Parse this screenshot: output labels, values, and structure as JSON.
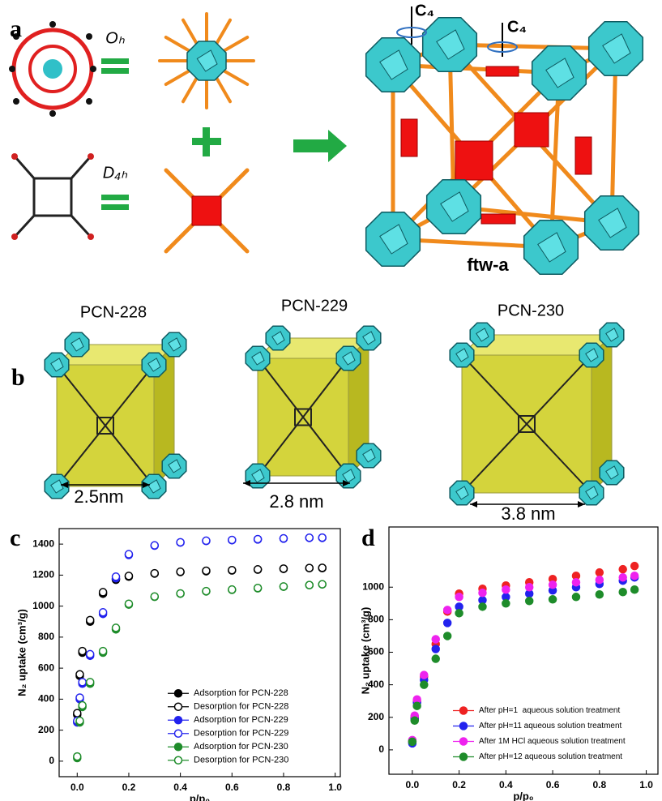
{
  "panels": {
    "a": {
      "label": "a",
      "oh": "Oₕ",
      "d4h": "D₄ₕ",
      "c4_left": "C₄",
      "c4_right": "C₄",
      "net": "ftw-a"
    },
    "b": {
      "label": "b",
      "names": [
        "PCN-228",
        "PCN-229",
        "PCN-230"
      ],
      "sizes": [
        "2.5nm",
        "2.8 nm",
        "3.8 nm"
      ]
    },
    "c": {
      "label": "c"
    },
    "d": {
      "label": "d"
    }
  },
  "chart_data": [
    {
      "type": "scatter",
      "x_label": "p/p₀",
      "y_label": "N₂ uptake (cm³/g)",
      "x": [
        0,
        0.01,
        0.02,
        0.05,
        0.1,
        0.15,
        0.2,
        0.3,
        0.4,
        0.5,
        0.6,
        0.7,
        0.8,
        0.9,
        0.95
      ],
      "xlim": [
        -0.07,
        1.02
      ],
      "ylim": [
        -100,
        1500
      ],
      "xticks": [
        {
          "value": 0,
          "label": "0.0"
        },
        {
          "value": 0.2,
          "label": "0.2"
        },
        {
          "value": 0.4,
          "label": "0.4"
        },
        {
          "value": 0.6,
          "label": "0.6"
        },
        {
          "value": 0.8,
          "label": "0.8"
        },
        {
          "value": 1,
          "label": "1.0"
        }
      ],
      "yticks": [
        0,
        200,
        400,
        600,
        800,
        1000,
        1200,
        1400
      ],
      "legend": "lower right",
      "series": [
        {
          "name": "Adsorption for PCN-228",
          "color": "#000000",
          "filled": true,
          "values": [
            300,
            550,
            700,
            900,
            1080,
            1170,
            1190,
            1210,
            1220,
            1225,
            1230,
            1235,
            1240,
            1245,
            1245
          ]
        },
        {
          "name": "Desorption for PCN-228",
          "color": "#000000",
          "filled": false,
          "values": [
            310,
            560,
            710,
            910,
            1090,
            1175,
            1195,
            1212,
            1222,
            1228,
            1232,
            1237,
            1242,
            1246,
            1247
          ]
        },
        {
          "name": "Adsorption for PCN-229",
          "color": "#2222ee",
          "filled": true,
          "values": [
            250,
            400,
            500,
            680,
            950,
            1180,
            1330,
            1390,
            1410,
            1420,
            1425,
            1430,
            1435,
            1440,
            1440
          ]
        },
        {
          "name": "Desorption for PCN-229",
          "color": "#2222ee",
          "filled": false,
          "values": [
            260,
            410,
            510,
            690,
            960,
            1190,
            1335,
            1392,
            1412,
            1422,
            1427,
            1432,
            1437,
            1441,
            1442
          ]
        },
        {
          "name": "Adsorption for PCN-230",
          "color": "#1e8c2a",
          "filled": true,
          "values": [
            20,
            250,
            350,
            500,
            700,
            850,
            1010,
            1060,
            1080,
            1095,
            1105,
            1115,
            1125,
            1135,
            1140
          ]
        },
        {
          "name": "Desorption for PCN-230",
          "color": "#1e8c2a",
          "filled": false,
          "values": [
            30,
            260,
            360,
            510,
            710,
            860,
            1015,
            1062,
            1082,
            1097,
            1107,
            1117,
            1127,
            1136,
            1141
          ]
        }
      ]
    },
    {
      "type": "scatter",
      "x_label": "p/p₀",
      "y_label": "N₂ uptake (cm³/g)",
      "x": [
        0,
        0.01,
        0.02,
        0.05,
        0.1,
        0.15,
        0.2,
        0.3,
        0.4,
        0.5,
        0.6,
        0.7,
        0.8,
        0.9,
        0.95
      ],
      "xlim": [
        -0.1,
        1.05
      ],
      "ylim": [
        -150,
        1370
      ],
      "xticks": [
        {
          "value": 0,
          "label": "0.0"
        },
        {
          "value": 0.2,
          "label": "0.2"
        },
        {
          "value": 0.4,
          "label": "0.4"
        },
        {
          "value": 0.6,
          "label": "0.6"
        },
        {
          "value": 0.8,
          "label": "0.8"
        },
        {
          "value": 1,
          "label": "1.0"
        }
      ],
      "yticks": [
        0,
        200,
        400,
        600,
        800,
        1000
      ],
      "legend": "lower right",
      "series": [
        {
          "name": "After pH=1  aqueous solution treatment",
          "color": "#ee2222",
          "filled": true,
          "values": [
            50,
            200,
            300,
            450,
            650,
            850,
            960,
            990,
            1010,
            1030,
            1050,
            1070,
            1090,
            1110,
            1130
          ]
        },
        {
          "name": "After pH=11 aqueous solution treatment",
          "color": "#2222ee",
          "filled": true,
          "values": [
            40,
            190,
            290,
            430,
            620,
            780,
            880,
            920,
            940,
            960,
            980,
            1000,
            1020,
            1040,
            1060
          ]
        },
        {
          "name": "After 1M HCl aqueous solution treatment",
          "color": "#ee22ee",
          "filled": true,
          "values": [
            60,
            210,
            310,
            460,
            680,
            860,
            940,
            965,
            985,
            1000,
            1015,
            1030,
            1045,
            1060,
            1070
          ]
        },
        {
          "name": "After pH=12 aqueous solution treatment",
          "color": "#1e8c2a",
          "filled": true,
          "values": [
            50,
            180,
            270,
            400,
            560,
            700,
            840,
            880,
            900,
            915,
            925,
            940,
            955,
            970,
            985
          ]
        }
      ]
    }
  ]
}
